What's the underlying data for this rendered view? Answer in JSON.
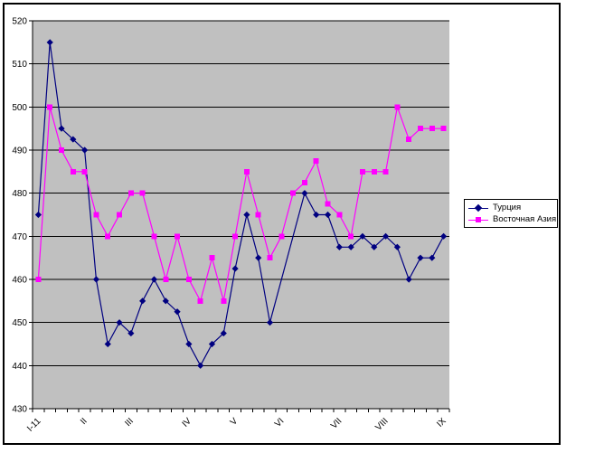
{
  "chart_data": {
    "type": "line",
    "title": "",
    "plot_bg": "#c0c0c0",
    "grid": true,
    "legend_position": "right",
    "ylim": [
      430,
      520
    ],
    "y_ticks": [
      520,
      510,
      500,
      490,
      480,
      470,
      460,
      450,
      440,
      430
    ],
    "n_categories": 36,
    "x_tick_labels": [
      "I-11",
      "II",
      "III",
      "IV",
      "V",
      "VI",
      "VII",
      "VIII",
      "IX"
    ],
    "x_label_categories": [
      1,
      5,
      9,
      14,
      18,
      22,
      27,
      31,
      36
    ],
    "series": [
      {
        "name": "Турция",
        "slug": "turkey",
        "color": "#000080",
        "marker": "diamond",
        "values": [
          475,
          515,
          495,
          492.5,
          490,
          460,
          445,
          450,
          447.5,
          455,
          460,
          455,
          452.5,
          445,
          440,
          445,
          447.5,
          462.5,
          475,
          465,
          450,
          null,
          null,
          480,
          475,
          475,
          467.5,
          467.5,
          470,
          467.5,
          470,
          467.5,
          460,
          465,
          465,
          470
        ]
      },
      {
        "name": "Восточная Азия",
        "slug": "east-asia",
        "color": "#ff00ff",
        "marker": "square",
        "values": [
          460,
          500,
          490,
          485,
          485,
          475,
          470,
          475,
          480,
          480,
          470,
          460,
          470,
          460,
          455,
          465,
          455,
          470,
          485,
          475,
          465,
          470,
          480,
          482.5,
          487.5,
          477.5,
          475,
          470,
          485,
          485,
          485,
          500,
          492.5,
          495,
          495,
          495
        ]
      }
    ]
  }
}
